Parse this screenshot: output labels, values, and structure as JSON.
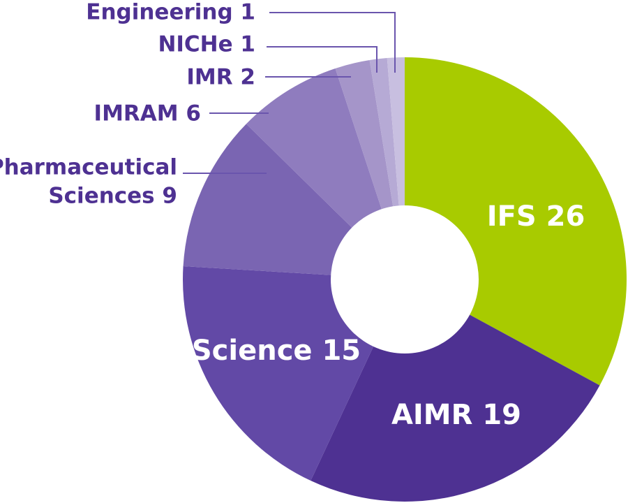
{
  "chart_data": {
    "type": "pie",
    "donut": true,
    "title": "",
    "categories": [
      "IFS",
      "AIMR",
      "Science",
      "Pharmaceutical Sciences",
      "IMRAM",
      "IMR",
      "NICHe",
      "Engineering"
    ],
    "values": [
      26,
      19,
      15,
      9,
      6,
      2,
      1,
      1
    ],
    "slice_colors": [
      "#a8cb00",
      "#4e3192",
      "#6249a6",
      "#7a65b2",
      "#8f7cbe",
      "#a595c9",
      "#b6aad5",
      "#c8bfe0"
    ],
    "labels": [
      {
        "lines": [
          "IFS 26"
        ]
      },
      {
        "lines": [
          "AIMR 19"
        ]
      },
      {
        "lines": [
          "Science 15"
        ]
      },
      {
        "lines": [
          "Pharmaceutical",
          "Sciences 9"
        ]
      },
      {
        "lines": [
          "IMRAM 6"
        ]
      },
      {
        "lines": [
          "IMR 2"
        ]
      },
      {
        "lines": [
          "NICHe 1"
        ]
      },
      {
        "lines": [
          "Engineering 1"
        ]
      }
    ],
    "label_placement": [
      "inside",
      "inside",
      "inside",
      "outside",
      "outside",
      "outside",
      "outside",
      "outside"
    ],
    "outside_label_color": "#4e3192",
    "leader_line_color": "#6a55ad"
  }
}
